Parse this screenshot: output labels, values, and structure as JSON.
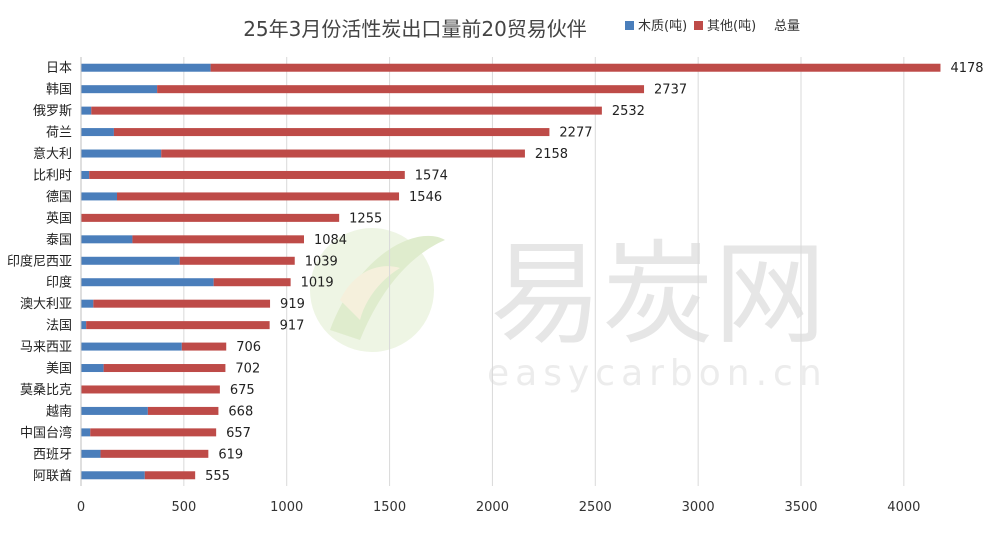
{
  "chart_data": {
    "type": "bar",
    "orientation": "horizontal",
    "stacked": true,
    "title": "25年3月份活性炭出口量前20贸易伙伴",
    "categories": [
      "日本",
      "韩国",
      "俄罗斯",
      "荷兰",
      "意大利",
      "比利时",
      "德国",
      "英国",
      "泰国",
      "印度尼西亚",
      "印度",
      "澳大利亚",
      "法国",
      "马来西亚",
      "美国",
      "莫桑比克",
      "越南",
      "中国台湾",
      "西班牙",
      "阿联酋"
    ],
    "series": [
      {
        "name": "木质(吨)",
        "color": "#4a7ebb",
        "values": [
          630,
          370,
          50,
          160,
          390,
          40,
          175,
          0,
          250,
          480,
          645,
          60,
          25,
          490,
          110,
          0,
          325,
          45,
          95,
          310
        ]
      },
      {
        "name": "其他(吨)",
        "color": "#be4b48",
        "values": [
          3548,
          2367,
          2482,
          2117,
          1768,
          1534,
          1371,
          1255,
          834,
          559,
          374,
          859,
          892,
          216,
          592,
          675,
          343,
          612,
          524,
          245
        ]
      }
    ],
    "totals_series_name": "总量",
    "totals": [
      4178,
      2737,
      2532,
      2277,
      2158,
      1574,
      1546,
      1255,
      1084,
      1039,
      1019,
      919,
      917,
      706,
      702,
      675,
      668,
      657,
      619,
      555
    ],
    "xlim": [
      0,
      4200
    ],
    "xticks": [
      0,
      500,
      1000,
      1500,
      2000,
      2500,
      3000,
      3500,
      4000
    ],
    "grid": true,
    "legend_position": "top-right"
  },
  "watermark": {
    "brand": "易炭网",
    "url": "easycarbon.cn"
  }
}
